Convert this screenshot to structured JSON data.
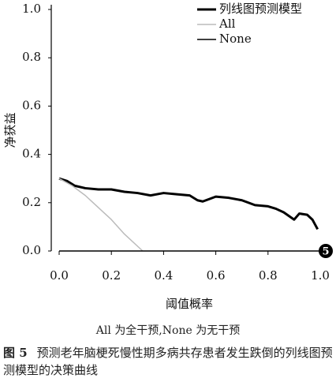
{
  "chart_data": {
    "type": "line",
    "xlabel": "阈值概率",
    "ylabel": "净获益",
    "xlim": [
      0,
      1
    ],
    "ylim": [
      0,
      1
    ],
    "xticks": [
      {
        "value": 0,
        "label": "0.0"
      },
      0.2,
      0.4,
      0.6,
      0.8,
      {
        "value": 1,
        "label": "1.0"
      }
    ],
    "yticks": [
      {
        "value": 0,
        "label": "0.0"
      },
      0.2,
      0.4,
      0.6,
      0.8,
      {
        "value": 1,
        "label": "1.0"
      }
    ],
    "series": [
      {
        "name": "列线图预测模型",
        "color": "#000000",
        "width": 3,
        "x": [
          0,
          0.03,
          0.06,
          0.1,
          0.15,
          0.2,
          0.25,
          0.3,
          0.35,
          0.4,
          0.45,
          0.5,
          0.53,
          0.55,
          0.6,
          0.65,
          0.7,
          0.75,
          0.8,
          0.83,
          0.86,
          0.9,
          0.92,
          0.95,
          0.97,
          0.99
        ],
        "values": [
          0.3,
          0.29,
          0.27,
          0.26,
          0.255,
          0.255,
          0.245,
          0.24,
          0.23,
          0.24,
          0.235,
          0.23,
          0.21,
          0.205,
          0.225,
          0.22,
          0.21,
          0.19,
          0.185,
          0.175,
          0.16,
          0.13,
          0.155,
          0.15,
          0.13,
          0.09
        ]
      },
      {
        "name": "All",
        "color": "#bbbbbb",
        "width": 1.5,
        "x": [
          0,
          0.05,
          0.1,
          0.15,
          0.2,
          0.25,
          0.3,
          0.32
        ],
        "values": [
          0.3,
          0.27,
          0.23,
          0.18,
          0.13,
          0.07,
          0.02,
          0
        ]
      },
      {
        "name": "None",
        "color": "#000000",
        "width": 1.5,
        "x": [
          0,
          1
        ],
        "values": [
          0,
          0
        ]
      }
    ],
    "badge": "5",
    "note": "All 为全干预,None 为无干预",
    "figure_label": "图 5",
    "caption": "预测老年脑梗死慢性期多病共存患者发生跌倒的列线图预测模型的决策曲线"
  }
}
